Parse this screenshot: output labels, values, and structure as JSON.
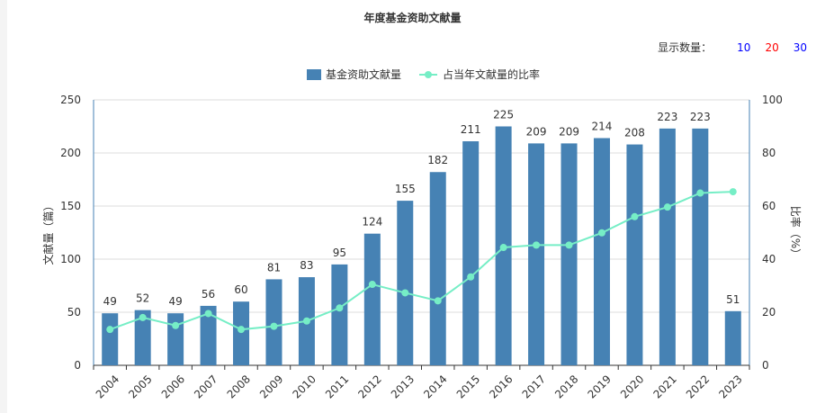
{
  "header": {
    "title": "年度基金资助文献量",
    "count_label": "显示数量：",
    "count_options": [
      {
        "label": "10",
        "color": "#0000ff"
      },
      {
        "label": "20",
        "color": "#ff0000"
      },
      {
        "label": "30",
        "color": "#0000ff"
      }
    ]
  },
  "colors": {
    "bar": "#4682b4",
    "line": "#76eec6",
    "axis_right": "#4682b4"
  },
  "chart_data": {
    "type": "bar",
    "categories": [
      "2004",
      "2005",
      "2006",
      "2007",
      "2008",
      "2009",
      "2010",
      "2011",
      "2012",
      "2013",
      "2014",
      "2015",
      "2016",
      "2017",
      "2018",
      "2019",
      "2020",
      "2021",
      "2022",
      "2023"
    ],
    "series": [
      {
        "name": "基金资助文献量",
        "type": "bar",
        "axis": "left",
        "values": [
          49,
          52,
          49,
          56,
          60,
          81,
          83,
          95,
          124,
          155,
          182,
          211,
          225,
          209,
          209,
          214,
          208,
          223,
          223,
          51
        ]
      },
      {
        "name": "占当年文献量的比率",
        "type": "line",
        "axis": "right",
        "values": [
          13.5,
          18,
          15,
          19.5,
          13.5,
          14.7,
          16.7,
          21.6,
          30.5,
          27.3,
          24.3,
          33.3,
          44.4,
          45.3,
          45.3,
          49.9,
          56,
          59.6,
          64.9,
          65.4
        ]
      }
    ],
    "ylabel": "文献量（篇）",
    "y2label": "比率（%）",
    "ylim": [
      0,
      250
    ],
    "y2lim": [
      0,
      100
    ],
    "yticks": [
      0,
      50,
      100,
      150,
      200,
      250
    ],
    "y2ticks": [
      0,
      20,
      40,
      60,
      80,
      100
    ],
    "legend_position": "top-center",
    "grid": true
  }
}
